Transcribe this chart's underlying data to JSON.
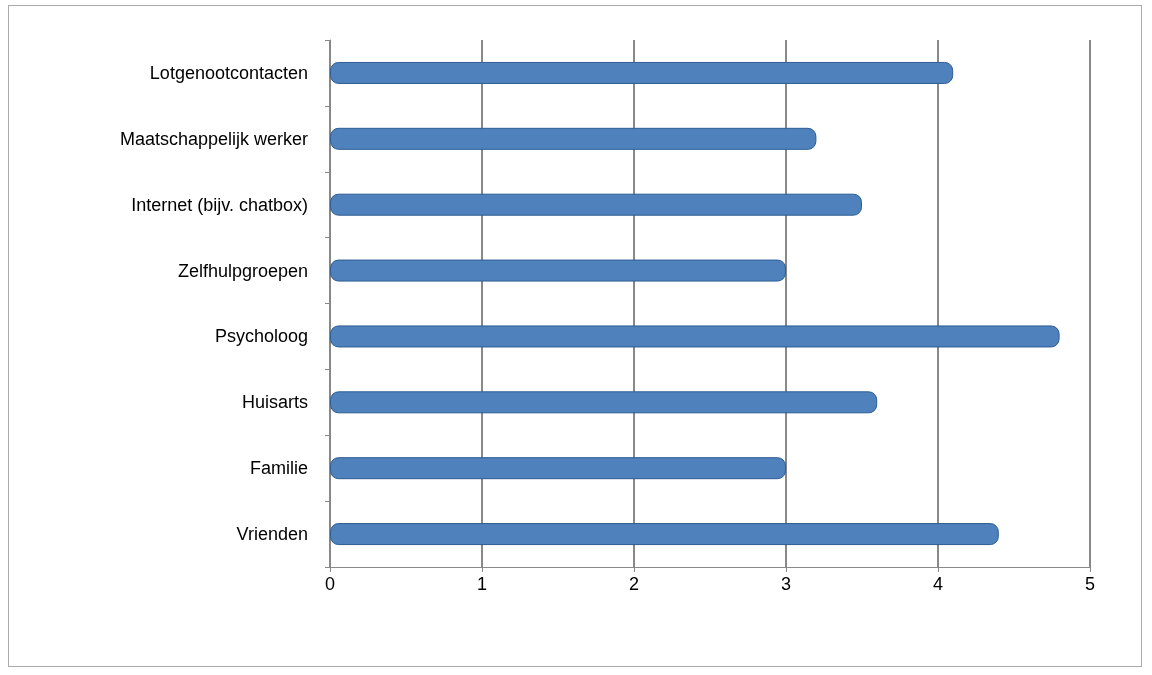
{
  "chart_data": {
    "type": "bar",
    "orientation": "horizontal",
    "categories": [
      "Lotgenootcontacten",
      "Maatschappelijk werker",
      "Internet (bijv. chatbox)",
      "Zelfhulpgroepen",
      "Psycholoog",
      "Huisarts",
      "Familie",
      "Vrienden"
    ],
    "values": [
      4.1,
      3.2,
      3.5,
      3.0,
      4.8,
      3.6,
      3.0,
      4.4
    ],
    "color": "#4f81bd",
    "xlim": [
      0,
      5
    ],
    "xticks": [
      0,
      1,
      2,
      3,
      4,
      5
    ],
    "grid": "x"
  }
}
